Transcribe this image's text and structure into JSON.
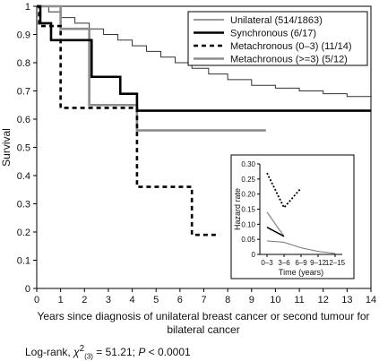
{
  "chart_data": [
    {
      "type": "line",
      "step": true,
      "title": "",
      "xlabel_line1": "Years since diagnosis of unilateral breast cancer or second tumour for",
      "xlabel_line2": "bilateral cancer",
      "ylabel": "Survival",
      "xlim": [
        0,
        14
      ],
      "ylim": [
        0,
        1
      ],
      "x_ticks": [
        "0",
        "1",
        "2",
        "3",
        "4",
        "5",
        "6",
        "7",
        "8",
        "9",
        "10",
        "11",
        "12",
        "13",
        "14"
      ],
      "y_ticks": [
        "0",
        "0.1",
        "0.2",
        "0.3",
        "0.4",
        "0.5",
        "0.6",
        "0.7",
        "0.8",
        "0.9",
        "1"
      ],
      "grid": false,
      "legend_position": "top-right",
      "series": [
        {
          "name": "Unilateral (514/1863)",
          "color": "#333333",
          "style": "thin-solid",
          "points": [
            [
              0,
              1
            ],
            [
              0.5,
              0.98
            ],
            [
              1,
              0.96
            ],
            [
              1.6,
              0.94
            ],
            [
              2.2,
              0.92
            ],
            [
              2.8,
              0.9
            ],
            [
              3.4,
              0.88
            ],
            [
              4,
              0.86
            ],
            [
              4.6,
              0.84
            ],
            [
              5.2,
              0.82
            ],
            [
              5.8,
              0.8
            ],
            [
              6.5,
              0.78
            ],
            [
              7.2,
              0.76
            ],
            [
              8,
              0.74
            ],
            [
              9,
              0.72
            ],
            [
              10,
              0.71
            ],
            [
              11,
              0.7
            ],
            [
              12,
              0.69
            ],
            [
              13,
              0.68
            ],
            [
              14,
              0.68
            ]
          ]
        },
        {
          "name": "Synchronous (6/17)",
          "color": "#000000",
          "style": "thick-solid",
          "points": [
            [
              0,
              1
            ],
            [
              0.15,
              0.94
            ],
            [
              0.6,
              0.88
            ],
            [
              1.6,
              0.88
            ],
            [
              2.3,
              0.75
            ],
            [
              3.2,
              0.75
            ],
            [
              3.5,
              0.69
            ],
            [
              4.2,
              0.63
            ],
            [
              14,
              0.63
            ]
          ]
        },
        {
          "name": "Metachronous (0–3) (11/14)",
          "color": "#000000",
          "style": "thick-dashed",
          "points": [
            [
              0,
              1
            ],
            [
              0.1,
              0.93
            ],
            [
              0.5,
              0.93
            ],
            [
              1,
              0.64
            ],
            [
              2,
              0.64
            ],
            [
              3,
              0.64
            ],
            [
              4.2,
              0.36
            ],
            [
              6.5,
              0.19
            ],
            [
              7.6,
              0.19
            ]
          ]
        },
        {
          "name": "Metachronous (>=3) (5/12)",
          "color": "#8c8c8c",
          "style": "thick-solid",
          "points": [
            [
              0,
              1
            ],
            [
              1,
              0.92
            ],
            [
              1.5,
              0.92
            ],
            [
              2.2,
              0.65
            ],
            [
              3.6,
              0.65
            ],
            [
              4.2,
              0.56
            ],
            [
              9.6,
              0.56
            ]
          ]
        }
      ]
    },
    {
      "type": "line",
      "title": "",
      "xlabel": "Time (years)",
      "ylabel": "Hazard rate",
      "ylim": [
        0,
        0.3
      ],
      "y_ticks": [
        "0",
        "0.05",
        "0.10",
        "0.15",
        "0.20",
        "0.25",
        "0.30"
      ],
      "categories": [
        "0–3",
        "3–6",
        "6–9",
        "9–12",
        "12–15"
      ],
      "series": [
        {
          "color": "#000000",
          "style": "dotted",
          "values": [
            0.27,
            0.155,
            0.22,
            null,
            null
          ]
        },
        {
          "color": "#999999",
          "style": "solid",
          "values": [
            0.14,
            0.06,
            null,
            null,
            null
          ]
        },
        {
          "color": "#000000",
          "style": "solid",
          "values": [
            0.09,
            0.06,
            null,
            null,
            null
          ]
        },
        {
          "color": "#777777",
          "style": "thin-solid",
          "values": [
            0.045,
            0.04,
            0.022,
            0.01,
            0.003
          ]
        }
      ]
    }
  ],
  "footnote": {
    "prefix": "Log-rank, ",
    "chi": "χ",
    "chi_sub": "(3)",
    "chi_sup": "2",
    "middle": " = 51.21; ",
    "p_label": "P",
    "p_value": " < 0.0001"
  }
}
